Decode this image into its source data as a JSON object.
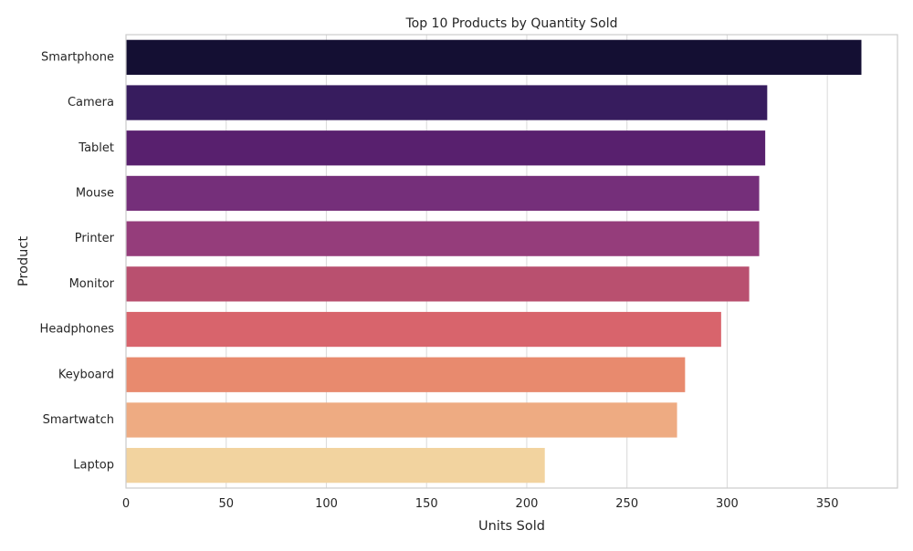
{
  "chart_data": {
    "type": "bar",
    "orientation": "horizontal",
    "title": "Top 10 Products by Quantity Sold",
    "xlabel": "Units Sold",
    "ylabel": "Product",
    "categories": [
      "Smartphone",
      "Camera",
      "Tablet",
      "Mouse",
      "Printer",
      "Monitor",
      "Headphones",
      "Keyboard",
      "Smartwatch",
      "Laptop"
    ],
    "values": [
      367,
      320,
      319,
      316,
      316,
      311,
      297,
      279,
      275,
      209
    ],
    "colors": [
      "#140f33",
      "#371c5e",
      "#58206e",
      "#752f7a",
      "#953d7b",
      "#b9506f",
      "#d8646c",
      "#e88a6e",
      "#eeab82",
      "#f2d39f"
    ],
    "xlim": [
      0,
      385
    ],
    "xticks": [
      0,
      50,
      100,
      150,
      200,
      250,
      300,
      350
    ],
    "grid": true,
    "grid_axis": "x",
    "legend": false
  }
}
